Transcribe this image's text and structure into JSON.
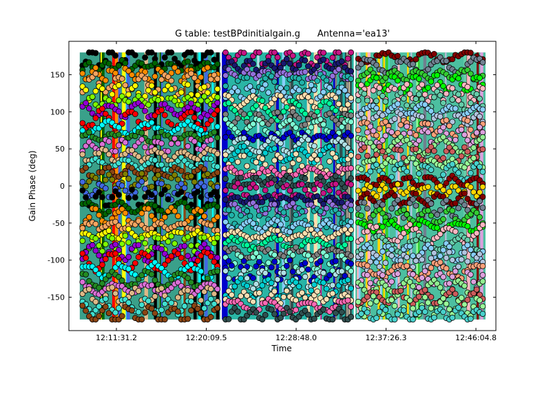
{
  "chart_data": {
    "type": "scatter",
    "title": "G table: testBPdinitialgain.g      Antenna='ea13'",
    "xlabel": "Time",
    "ylabel": "Gain Phase (deg)",
    "xticks": [
      "12:11:31.2",
      "12:20:09.5",
      "12:28:48.0",
      "12:37:26.3",
      "12:46:04.8"
    ],
    "yticks": [
      150,
      100,
      50,
      0,
      -50,
      -100,
      -150
    ],
    "ylim": [
      -195,
      195
    ],
    "grid": false,
    "legend": "none",
    "segments": [
      {
        "range": [
          "12:08:00",
          "12:21:30"
        ],
        "colors": [
          "#000000",
          "#006400",
          "#ff8c00",
          "#f4a460",
          "#ffff00",
          "#7fff00",
          "#9400d3",
          "#ff0000",
          "#00ffff",
          "#228b22",
          "#da70d6",
          "#deb887",
          "#40e0d0",
          "#8b4513",
          "#808000",
          "#4169e1"
        ]
      },
      {
        "range": [
          "12:21:45",
          "12:34:20"
        ],
        "colors": [
          "#c71585",
          "#191970",
          "#9370db",
          "#20b2aa",
          "#87cefa",
          "#ffdead",
          "#00fa9a",
          "#808080",
          "#7fffd4",
          "#0000cd",
          "#b0e0e6",
          "#00ced1",
          "#f5deb3",
          "#ff69b4",
          "#2f4f4f"
        ]
      },
      {
        "range": [
          "12:34:30",
          "12:47:00"
        ],
        "colors": [
          "#800000",
          "#708090",
          "#32cd32",
          "#00ff00",
          "#ffb6c1",
          "#66cdaa",
          "#87cefa",
          "#b0c4de",
          "#ffa07a",
          "#dda0dd",
          "#90ee90",
          "#cd5c5c",
          "#98fb98",
          "#48d1cc",
          "#8b0000",
          "#ffd700"
        ]
      }
    ]
  }
}
